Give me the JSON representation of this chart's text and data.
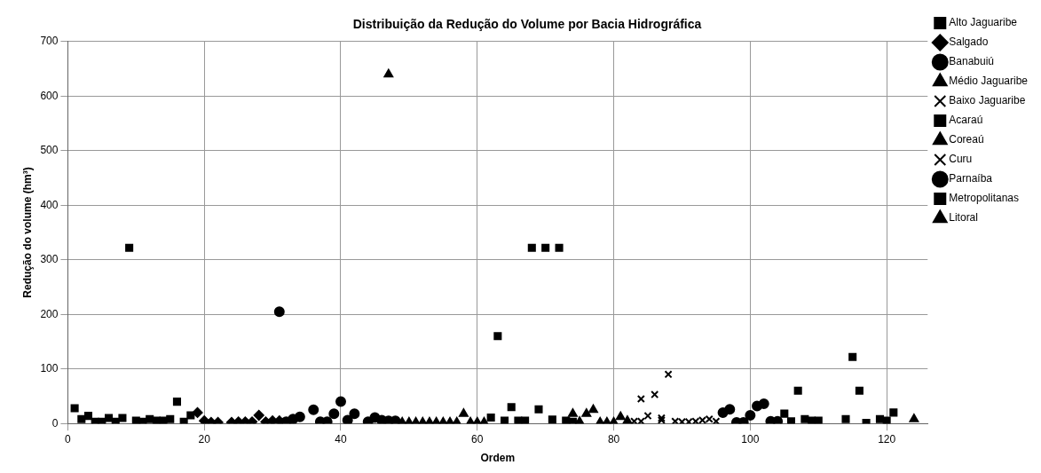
{
  "chart_data": {
    "type": "scatter",
    "title": "Distribuição da Redução do Volume por Bacia Hidrográfica",
    "xlabel": "Ordem",
    "ylabel": "Redução do volume (hm³)",
    "xlim": [
      0,
      126
    ],
    "xticks": [
      0,
      20,
      40,
      60,
      80,
      100,
      120
    ],
    "ylim": [
      0,
      700
    ],
    "yticks": [
      0,
      100,
      200,
      300,
      400,
      500,
      600,
      700
    ],
    "grid": true,
    "legend": "right",
    "series": [
      {
        "name": "Alto Jaguaribe",
        "color": "#000000",
        "marker": "square",
        "x": [
          1,
          2,
          3,
          4,
          5,
          6,
          7,
          8,
          9,
          10,
          11,
          12,
          13,
          14,
          15,
          16,
          17,
          18
        ],
        "values": [
          28,
          8,
          14,
          3,
          3,
          10,
          3,
          10,
          322,
          5,
          3,
          8,
          5,
          5,
          8,
          40,
          3,
          15
        ]
      },
      {
        "name": "Salgado",
        "color": "#000000",
        "marker": "diamond",
        "x": [
          19,
          20,
          21,
          22,
          24,
          25,
          26,
          27,
          28,
          29,
          30,
          31
        ],
        "values": [
          20,
          5,
          2,
          2,
          2,
          3,
          3,
          3,
          15,
          3,
          5,
          5
        ]
      },
      {
        "name": "Banabuiú",
        "color": "#000000",
        "marker": "circle",
        "x": [
          31,
          32,
          33,
          34,
          36,
          37,
          38,
          39,
          40,
          41,
          42,
          44,
          45,
          46,
          47,
          48
        ],
        "values": [
          205,
          3,
          8,
          12,
          25,
          3,
          3,
          18,
          40,
          6,
          18,
          3,
          11,
          6,
          5,
          5
        ]
      },
      {
        "name": "Médio Jaguaribe",
        "color": "#000000",
        "marker": "triangle",
        "x": [
          47,
          49,
          50,
          51,
          52,
          53,
          54,
          55,
          56,
          57,
          58,
          59,
          60,
          61
        ],
        "values": [
          640,
          2,
          2,
          2,
          2,
          2,
          2,
          2,
          2,
          2,
          18,
          2,
          2,
          2
        ]
      },
      {
        "name": "Baixo Jaguaribe",
        "color": "#000000",
        "marker": "cross",
        "x": [
          83,
          84,
          87,
          89,
          90,
          91,
          92,
          93,
          94
        ],
        "values": [
          4,
          4,
          6,
          4,
          3,
          3,
          4,
          6,
          8
        ]
      },
      {
        "name": "Acaraú",
        "color": "#000000",
        "marker": "square",
        "x": [
          62,
          63,
          64,
          65,
          66,
          67,
          68,
          69,
          70,
          71,
          72,
          73,
          74
        ],
        "values": [
          11,
          160,
          5,
          30,
          5,
          5,
          322,
          26,
          322,
          7,
          322,
          5,
          3
        ]
      },
      {
        "name": "Coreaú",
        "color": "#000000",
        "marker": "triangle",
        "x": [
          74,
          75,
          76,
          77,
          78,
          79,
          80,
          81,
          82
        ],
        "values": [
          18,
          3,
          18,
          25,
          2,
          2,
          2,
          12,
          5
        ]
      },
      {
        "name": "Curu",
        "color": "#000000",
        "marker": "cross",
        "x": [
          84,
          85,
          86,
          87,
          88,
          95
        ],
        "values": [
          45,
          14,
          53,
          10,
          90,
          4
        ]
      },
      {
        "name": "Parnaíba",
        "color": "#000000",
        "marker": "circle",
        "x": [
          96,
          97,
          98,
          99,
          100,
          101,
          102,
          103,
          104
        ],
        "values": [
          20,
          26,
          2,
          2,
          15,
          32,
          36,
          4,
          4
        ]
      },
      {
        "name": "Metropolitanas",
        "color": "#000000",
        "marker": "square",
        "x": [
          105,
          106,
          107,
          108,
          109,
          110,
          114,
          115,
          116,
          117,
          119,
          120,
          121
        ],
        "values": [
          18,
          4,
          60,
          8,
          5,
          5,
          8,
          122,
          60,
          1,
          8,
          5,
          20
        ]
      },
      {
        "name": "Litoral",
        "color": "#000000",
        "marker": "triangle",
        "x": [
          124
        ],
        "values": [
          8
        ]
      }
    ]
  }
}
